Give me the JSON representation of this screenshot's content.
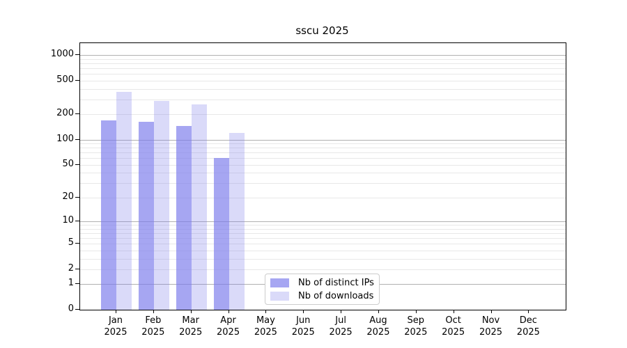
{
  "window": {
    "background": "#ffffff"
  },
  "chart_data": {
    "type": "bar",
    "title": "sscu 2025",
    "yscale": "log1p",
    "ylim": [
      0,
      1390
    ],
    "grid": "on",
    "legend_position": "inside-bottom-center",
    "months": [
      "Jan",
      "Feb",
      "Mar",
      "Apr",
      "May",
      "Jun",
      "Jul",
      "Aug",
      "Sep",
      "Oct",
      "Nov",
      "Dec"
    ],
    "year": "2025",
    "yticks": [
      0,
      1,
      2,
      5,
      10,
      20,
      50,
      100,
      200,
      500,
      1000
    ],
    "major_gridlines": [
      1,
      10,
      100,
      1000
    ],
    "minor_gridlines": [
      2,
      3,
      4,
      5,
      6,
      7,
      8,
      9,
      20,
      30,
      40,
      50,
      60,
      70,
      80,
      90,
      200,
      300,
      400,
      500,
      600,
      700,
      800,
      900
    ],
    "series": [
      {
        "name": "Nb of distinct IPs",
        "color": "rgba(122,122,235,0.67)",
        "values": [
          170,
          163,
          145,
          60,
          0,
          0,
          0,
          0,
          0,
          0,
          0,
          0
        ]
      },
      {
        "name": "Nb of downloads",
        "color": "rgba(122,122,235,0.28)",
        "values": [
          370,
          290,
          263,
          120,
          0,
          0,
          0,
          0,
          0,
          0,
          0,
          0
        ]
      }
    ],
    "colors": {
      "axis": "#000000",
      "major_grid": "#b0b0b0",
      "minor_grid": "#e8e8e8",
      "legend_border": "#cccccc",
      "title_text": "#000000"
    }
  }
}
